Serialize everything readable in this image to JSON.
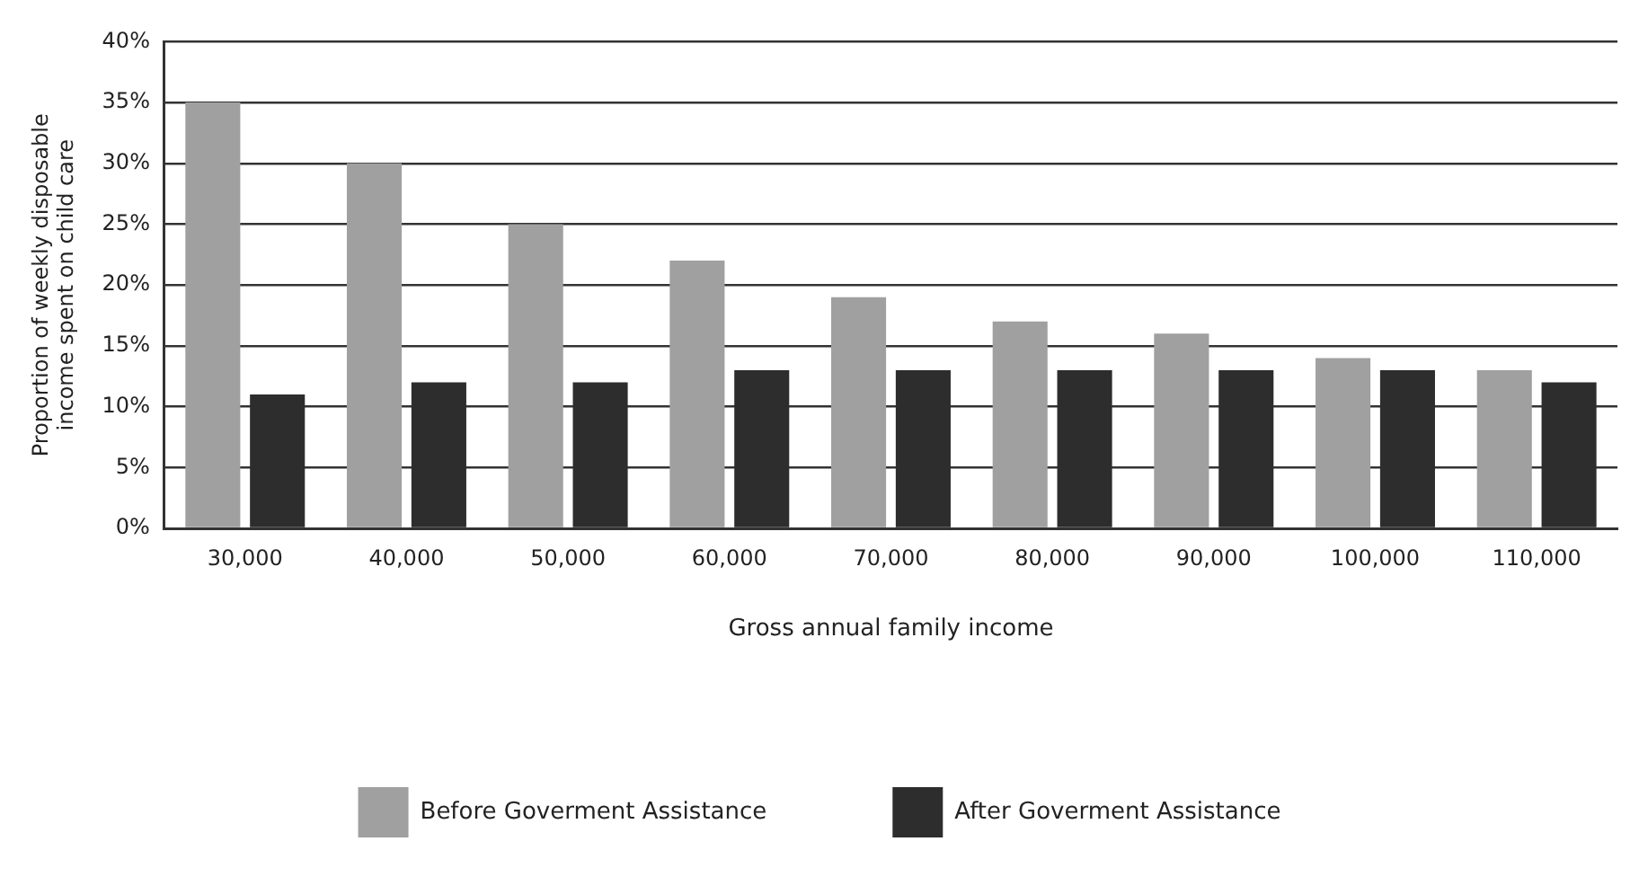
{
  "chart_data": {
    "type": "bar",
    "xlabel": "Gross annual family income",
    "ylabel": "Proportion of weekly disposable\nincome spent on child care",
    "categories": [
      "30,000",
      "40,000",
      "50,000",
      "60,000",
      "70,000",
      "80,000",
      "90,000",
      "100,000",
      "110,000"
    ],
    "series": [
      {
        "name": "Before Goverment Assistance",
        "color": "#a0a0a0",
        "values": [
          35,
          30,
          25,
          22,
          19,
          17,
          16,
          14,
          13
        ]
      },
      {
        "name": "After Goverment Assistance",
        "color": "#2d2d2d",
        "values": [
          11,
          12,
          12,
          13,
          13,
          13,
          13,
          13,
          12
        ]
      }
    ],
    "ylim": [
      0,
      40
    ],
    "yticks": [
      {
        "value": 0,
        "label": "0%"
      },
      {
        "value": 5,
        "label": "5%"
      },
      {
        "value": 10,
        "label": "10%"
      },
      {
        "value": 15,
        "label": "15%"
      },
      {
        "value": 20,
        "label": "20%"
      },
      {
        "value": 25,
        "label": "25%"
      },
      {
        "value": 30,
        "label": "30%"
      },
      {
        "value": 35,
        "label": "35%"
      },
      {
        "value": 40,
        "label": "40%"
      }
    ],
    "grid": "y",
    "legend": "bottom"
  }
}
